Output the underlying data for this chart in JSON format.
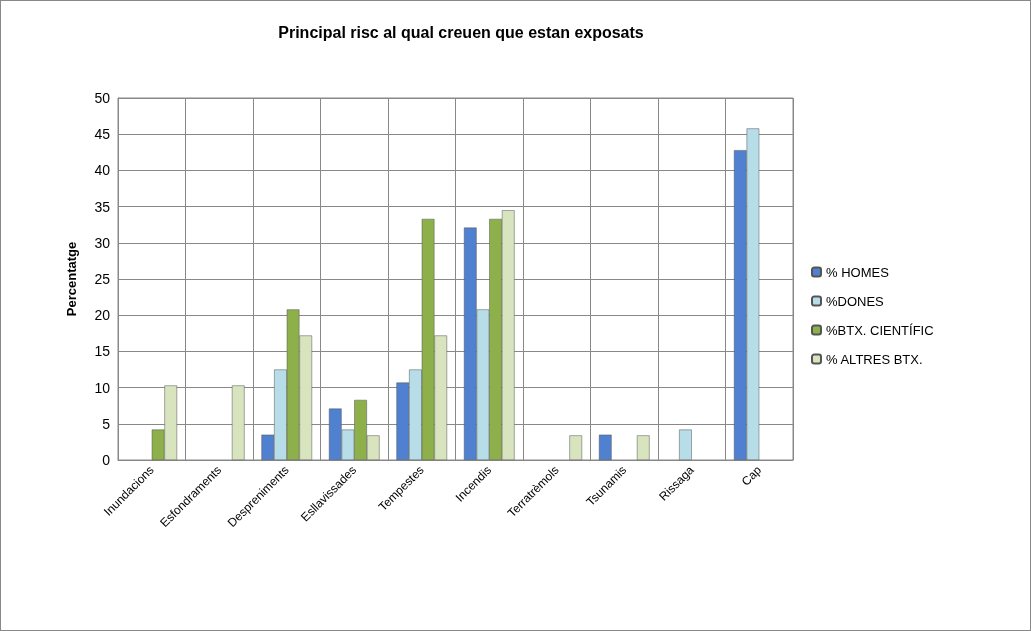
{
  "chart_data": {
    "type": "bar",
    "title": "Principal risc al qual creuen que estan exposats",
    "ylabel": "Percentatge",
    "categories": [
      "Inundacions",
      "Esfondraments",
      "Despreniments",
      "Esllavissades",
      "Tempestes",
      "Incendis",
      "Terratrèmols",
      "Tsunamis",
      "Rissaga",
      "Cap"
    ],
    "series": [
      {
        "name": "% HOMES",
        "color": "#4f81d0",
        "values": [
          0,
          0,
          3.5,
          7.1,
          10.7,
          32.1,
          0,
          3.5,
          0,
          42.8
        ]
      },
      {
        "name": "%DONES",
        "color": "#b7dee8",
        "values": [
          0,
          0,
          12.5,
          4.2,
          12.5,
          20.8,
          0,
          0,
          4.2,
          45.8
        ]
      },
      {
        "name": "%BTX. CIENTÍFIC",
        "color": "#8db04a",
        "values": [
          4.2,
          0,
          20.8,
          8.3,
          33.3,
          33.3,
          0,
          0,
          0,
          0
        ]
      },
      {
        "name": "% ALTRES BTX.",
        "color": "#d7e4bd",
        "values": [
          10.3,
          10.3,
          17.2,
          3.4,
          17.2,
          34.5,
          3.4,
          3.4,
          0,
          0
        ]
      }
    ],
    "ylim": [
      0,
      50
    ],
    "yticks": [
      0,
      5,
      10,
      15,
      20,
      25,
      30,
      35,
      40,
      45,
      50
    ],
    "grid": true,
    "legend": "right"
  }
}
